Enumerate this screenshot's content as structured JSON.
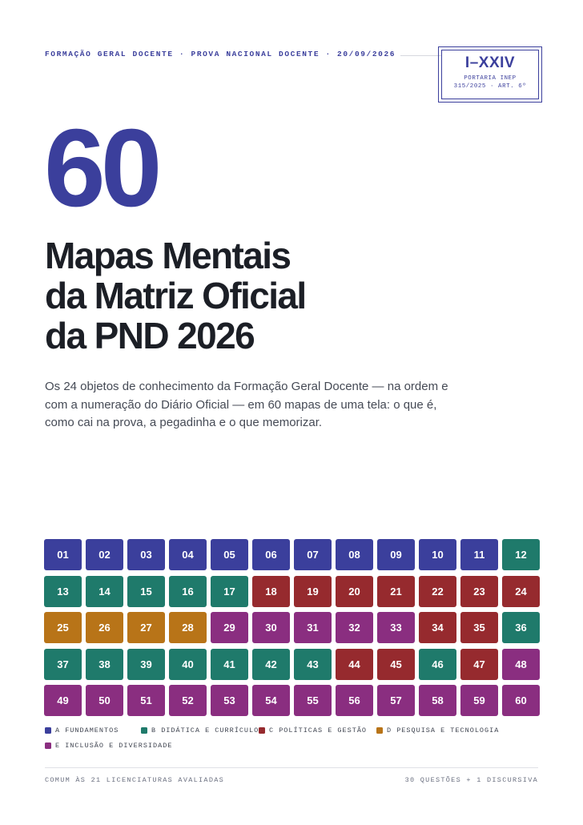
{
  "header": {
    "kicker": "FORMAÇÃO GERAL DOCENTE · PROVA NACIONAL DOCENTE · 20/09/2026"
  },
  "stamp": {
    "roman": "I–XXIV",
    "line1": "PORTARIA INEP",
    "line2": "315/2025 · ART. 6º"
  },
  "hero": {
    "number": "60",
    "title_lines": [
      "Mapas Mentais",
      "da Matriz Oficial",
      "da PND 2026"
    ],
    "description": "Os 24 objetos de conhecimento da Formação Geral Docente — na ordem e com a numeração do Diário Oficial — em 60 mapas de uma tela: o que é, como cai na prova, a pegadinha e o que memorizar."
  },
  "categories": {
    "A": {
      "label": "A FUNDAMENTOS",
      "color": "#3b3f9c"
    },
    "B": {
      "label": "B DIDÁTICA E CURRÍCULO",
      "color": "#1f7a6b"
    },
    "C": {
      "label": "C POLÍTICAS E GESTÃO",
      "color": "#962a2e"
    },
    "D": {
      "label": "D PESQUISA E TECNOLOGIA",
      "color": "#b87418"
    },
    "E": {
      "label": "E INCLUSÃO E DIVERSIDADE",
      "color": "#8a2e80"
    }
  },
  "tiles": [
    {
      "n": "01",
      "c": "A"
    },
    {
      "n": "02",
      "c": "A"
    },
    {
      "n": "03",
      "c": "A"
    },
    {
      "n": "04",
      "c": "A"
    },
    {
      "n": "05",
      "c": "A"
    },
    {
      "n": "06",
      "c": "A"
    },
    {
      "n": "07",
      "c": "A"
    },
    {
      "n": "08",
      "c": "A"
    },
    {
      "n": "09",
      "c": "A"
    },
    {
      "n": "10",
      "c": "A"
    },
    {
      "n": "11",
      "c": "A"
    },
    {
      "n": "12",
      "c": "B"
    },
    {
      "n": "13",
      "c": "B"
    },
    {
      "n": "14",
      "c": "B"
    },
    {
      "n": "15",
      "c": "B"
    },
    {
      "n": "16",
      "c": "B"
    },
    {
      "n": "17",
      "c": "B"
    },
    {
      "n": "18",
      "c": "C"
    },
    {
      "n": "19",
      "c": "C"
    },
    {
      "n": "20",
      "c": "C"
    },
    {
      "n": "21",
      "c": "C"
    },
    {
      "n": "22",
      "c": "C"
    },
    {
      "n": "23",
      "c": "C"
    },
    {
      "n": "24",
      "c": "C"
    },
    {
      "n": "25",
      "c": "D"
    },
    {
      "n": "26",
      "c": "D"
    },
    {
      "n": "27",
      "c": "D"
    },
    {
      "n": "28",
      "c": "D"
    },
    {
      "n": "29",
      "c": "E"
    },
    {
      "n": "30",
      "c": "E"
    },
    {
      "n": "31",
      "c": "E"
    },
    {
      "n": "32",
      "c": "E"
    },
    {
      "n": "33",
      "c": "E"
    },
    {
      "n": "34",
      "c": "C"
    },
    {
      "n": "35",
      "c": "C"
    },
    {
      "n": "36",
      "c": "B"
    },
    {
      "n": "37",
      "c": "B"
    },
    {
      "n": "38",
      "c": "B"
    },
    {
      "n": "39",
      "c": "B"
    },
    {
      "n": "40",
      "c": "B"
    },
    {
      "n": "41",
      "c": "B"
    },
    {
      "n": "42",
      "c": "B"
    },
    {
      "n": "43",
      "c": "B"
    },
    {
      "n": "44",
      "c": "C"
    },
    {
      "n": "45",
      "c": "C"
    },
    {
      "n": "46",
      "c": "B"
    },
    {
      "n": "47",
      "c": "C"
    },
    {
      "n": "48",
      "c": "E"
    },
    {
      "n": "49",
      "c": "E"
    },
    {
      "n": "50",
      "c": "E"
    },
    {
      "n": "51",
      "c": "E"
    },
    {
      "n": "52",
      "c": "E"
    },
    {
      "n": "53",
      "c": "E"
    },
    {
      "n": "54",
      "c": "E"
    },
    {
      "n": "55",
      "c": "E"
    },
    {
      "n": "56",
      "c": "E"
    },
    {
      "n": "57",
      "c": "E"
    },
    {
      "n": "58",
      "c": "E"
    },
    {
      "n": "59",
      "c": "E"
    },
    {
      "n": "60",
      "c": "E"
    }
  ],
  "legend_order": [
    "A",
    "B",
    "C",
    "D",
    "E"
  ],
  "footer": {
    "left": "COMUM ÀS 21 LICENCIATURAS AVALIADAS",
    "right": "30 QUESTÕES + 1 DISCURSIVA"
  }
}
